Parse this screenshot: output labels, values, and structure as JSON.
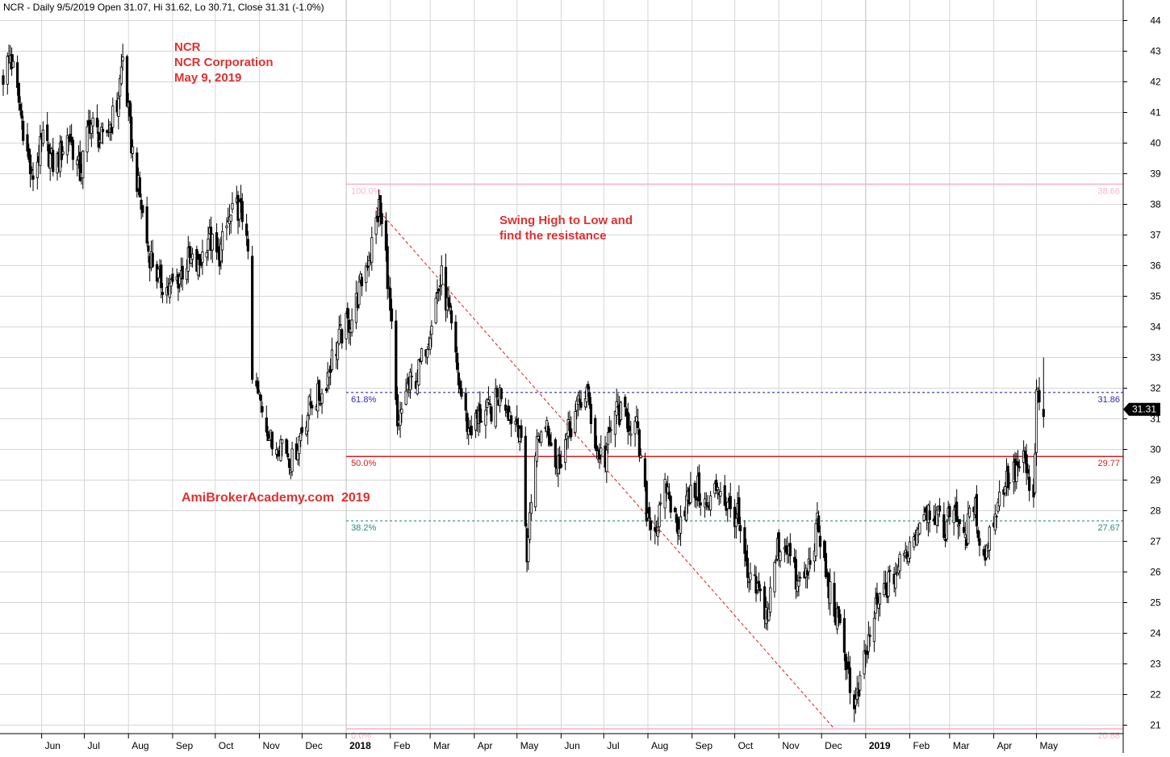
{
  "header": {
    "text": "NCR - Daily 9/5/2019 Open 31.07, Hi 31.62, Lo 30.71, Close 31.31 (-1.0%)"
  },
  "annotations": {
    "ticker": "NCR",
    "company": "NCR Corporation",
    "date": "May 9, 2019",
    "swing_line1": "Swing High to Low and",
    "swing_line2": "find the resistance",
    "watermark": "AmiBrokerAcademy.com  2019"
  },
  "colors": {
    "annotation_red": "#e03030",
    "candle": "#000000",
    "fib_100": "#f4b6c8",
    "fib_618": "#2a2ab0",
    "fib_50": "#d42020",
    "fib_382": "#2a8a7a",
    "fib_0": "#f4b6c8",
    "trend_line": "#d42020",
    "grid": "#d6d6d6",
    "price_tag_bg": "#000000"
  },
  "chart_data": {
    "type": "candlestick",
    "title": "NCR - Daily 9/5/2019 Open 31.07, Hi 31.62, Lo 30.71, Close 31.31 (-1.0%)",
    "ylim": [
      20.8,
      44.6
    ],
    "y_ticks": [
      21,
      22,
      23,
      24,
      25,
      26,
      27,
      28,
      29,
      30,
      31,
      32,
      33,
      34,
      35,
      36,
      37,
      38,
      39,
      40,
      41,
      42,
      43,
      44
    ],
    "x_start": "2017-05-05",
    "x_end": "2019-05-20",
    "x_ticks": [
      {
        "label": "Jun",
        "date": "2017-06-01",
        "bold": false
      },
      {
        "label": "Jul",
        "date": "2017-07-01",
        "bold": false
      },
      {
        "label": "Aug",
        "date": "2017-08-01",
        "bold": false
      },
      {
        "label": "Sep",
        "date": "2017-09-01",
        "bold": false
      },
      {
        "label": "Oct",
        "date": "2017-10-01",
        "bold": false
      },
      {
        "label": "Nov",
        "date": "2017-11-01",
        "bold": false
      },
      {
        "label": "Dec",
        "date": "2017-12-01",
        "bold": false
      },
      {
        "label": "2018",
        "date": "2018-01-01",
        "bold": true
      },
      {
        "label": "Feb",
        "date": "2018-02-01",
        "bold": false
      },
      {
        "label": "Mar",
        "date": "2018-03-01",
        "bold": false
      },
      {
        "label": "Apr",
        "date": "2018-04-01",
        "bold": false
      },
      {
        "label": "May",
        "date": "2018-05-01",
        "bold": false
      },
      {
        "label": "Jun",
        "date": "2018-06-01",
        "bold": false
      },
      {
        "label": "Jul",
        "date": "2018-07-01",
        "bold": false
      },
      {
        "label": "Aug",
        "date": "2018-08-01",
        "bold": false
      },
      {
        "label": "Sep",
        "date": "2018-09-01",
        "bold": false
      },
      {
        "label": "Oct",
        "date": "2018-10-01",
        "bold": false
      },
      {
        "label": "Nov",
        "date": "2018-11-01",
        "bold": false
      },
      {
        "label": "Dec",
        "date": "2018-12-01",
        "bold": false
      },
      {
        "label": "2019",
        "date": "2019-01-01",
        "bold": true
      },
      {
        "label": "Feb",
        "date": "2019-02-01",
        "bold": false
      },
      {
        "label": "Mar",
        "date": "2019-03-01",
        "bold": false
      },
      {
        "label": "Apr",
        "date": "2019-04-01",
        "bold": false
      },
      {
        "label": "May",
        "date": "2019-05-01",
        "bold": false
      }
    ],
    "close_path": [
      {
        "date": "2017-05-05",
        "close": 42.2
      },
      {
        "date": "2017-05-10",
        "close": 42.9
      },
      {
        "date": "2017-05-18",
        "close": 40.8
      },
      {
        "date": "2017-05-25",
        "close": 38.8
      },
      {
        "date": "2017-06-02",
        "close": 40.1
      },
      {
        "date": "2017-06-10",
        "close": 39.2
      },
      {
        "date": "2017-06-20",
        "close": 40.3
      },
      {
        "date": "2017-06-28",
        "close": 39.0
      },
      {
        "date": "2017-07-05",
        "close": 40.7
      },
      {
        "date": "2017-07-14",
        "close": 40.0
      },
      {
        "date": "2017-07-24",
        "close": 41.2
      },
      {
        "date": "2017-07-28",
        "close": 42.8
      },
      {
        "date": "2017-08-03",
        "close": 40.0
      },
      {
        "date": "2017-08-08",
        "close": 38.5
      },
      {
        "date": "2017-08-15",
        "close": 36.5
      },
      {
        "date": "2017-08-22",
        "close": 35.6
      },
      {
        "date": "2017-08-29",
        "close": 35.2
      },
      {
        "date": "2017-09-05",
        "close": 35.6
      },
      {
        "date": "2017-09-12",
        "close": 36.2
      },
      {
        "date": "2017-09-19",
        "close": 35.9
      },
      {
        "date": "2017-09-26",
        "close": 37.0
      },
      {
        "date": "2017-10-03",
        "close": 36.2
      },
      {
        "date": "2017-10-10",
        "close": 37.4
      },
      {
        "date": "2017-10-17",
        "close": 37.9
      },
      {
        "date": "2017-10-23",
        "close": 37.3
      },
      {
        "date": "2017-10-27",
        "close": 32.2
      },
      {
        "date": "2017-11-03",
        "close": 31.4
      },
      {
        "date": "2017-11-10",
        "close": 30.1
      },
      {
        "date": "2017-11-17",
        "close": 30.3
      },
      {
        "date": "2017-11-24",
        "close": 29.6
      },
      {
        "date": "2017-12-01",
        "close": 30.7
      },
      {
        "date": "2017-12-08",
        "close": 31.6
      },
      {
        "date": "2017-12-15",
        "close": 31.8
      },
      {
        "date": "2017-12-22",
        "close": 33.0
      },
      {
        "date": "2017-12-29",
        "close": 33.8
      },
      {
        "date": "2018-01-05",
        "close": 34.3
      },
      {
        "date": "2018-01-12",
        "close": 35.5
      },
      {
        "date": "2018-01-19",
        "close": 36.7
      },
      {
        "date": "2018-01-24",
        "close": 37.9
      },
      {
        "date": "2018-01-29",
        "close": 36.3
      },
      {
        "date": "2018-02-02",
        "close": 33.8
      },
      {
        "date": "2018-02-06",
        "close": 30.5
      },
      {
        "date": "2018-02-12",
        "close": 32.0
      },
      {
        "date": "2018-02-20",
        "close": 32.4
      },
      {
        "date": "2018-02-27",
        "close": 33.6
      },
      {
        "date": "2018-03-05",
        "close": 34.9
      },
      {
        "date": "2018-03-09",
        "close": 35.6
      },
      {
        "date": "2018-03-15",
        "close": 34.2
      },
      {
        "date": "2018-03-21",
        "close": 32.2
      },
      {
        "date": "2018-03-28",
        "close": 30.6
      },
      {
        "date": "2018-04-05",
        "close": 31.1
      },
      {
        "date": "2018-04-13",
        "close": 31.3
      },
      {
        "date": "2018-04-20",
        "close": 31.9
      },
      {
        "date": "2018-04-27",
        "close": 31.1
      },
      {
        "date": "2018-05-03",
        "close": 30.8
      },
      {
        "date": "2018-05-08",
        "close": 26.6
      },
      {
        "date": "2018-05-14",
        "close": 30.1
      },
      {
        "date": "2018-05-22",
        "close": 31.0
      },
      {
        "date": "2018-05-29",
        "close": 29.4
      },
      {
        "date": "2018-06-05",
        "close": 30.4
      },
      {
        "date": "2018-06-12",
        "close": 31.3
      },
      {
        "date": "2018-06-19",
        "close": 31.9
      },
      {
        "date": "2018-06-26",
        "close": 30.0
      },
      {
        "date": "2018-07-02",
        "close": 29.7
      },
      {
        "date": "2018-07-09",
        "close": 31.3
      },
      {
        "date": "2018-07-16",
        "close": 31.0
      },
      {
        "date": "2018-07-24",
        "close": 30.7
      },
      {
        "date": "2018-07-31",
        "close": 28.0
      },
      {
        "date": "2018-08-07",
        "close": 27.4
      },
      {
        "date": "2018-08-14",
        "close": 28.8
      },
      {
        "date": "2018-08-21",
        "close": 27.5
      },
      {
        "date": "2018-08-28",
        "close": 28.3
      },
      {
        "date": "2018-09-05",
        "close": 28.7
      },
      {
        "date": "2018-09-12",
        "close": 28.0
      },
      {
        "date": "2018-09-19",
        "close": 28.9
      },
      {
        "date": "2018-09-26",
        "close": 28.1
      },
      {
        "date": "2018-10-03",
        "close": 27.8
      },
      {
        "date": "2018-10-10",
        "close": 25.7
      },
      {
        "date": "2018-10-17",
        "close": 25.4
      },
      {
        "date": "2018-10-24",
        "close": 24.6
      },
      {
        "date": "2018-10-31",
        "close": 26.8
      },
      {
        "date": "2018-11-07",
        "close": 26.9
      },
      {
        "date": "2018-11-14",
        "close": 25.5
      },
      {
        "date": "2018-11-21",
        "close": 26.0
      },
      {
        "date": "2018-11-28",
        "close": 27.5
      },
      {
        "date": "2018-12-05",
        "close": 25.7
      },
      {
        "date": "2018-12-12",
        "close": 24.4
      },
      {
        "date": "2018-12-19",
        "close": 23.0
      },
      {
        "date": "2018-12-24",
        "close": 21.4
      },
      {
        "date": "2018-12-31",
        "close": 23.0
      },
      {
        "date": "2019-01-07",
        "close": 24.6
      },
      {
        "date": "2019-01-14",
        "close": 25.4
      },
      {
        "date": "2019-01-21",
        "close": 25.9
      },
      {
        "date": "2019-01-28",
        "close": 26.5
      },
      {
        "date": "2019-02-04",
        "close": 27.2
      },
      {
        "date": "2019-02-11",
        "close": 28.1
      },
      {
        "date": "2019-02-18",
        "close": 28.0
      },
      {
        "date": "2019-02-25",
        "close": 27.3
      },
      {
        "date": "2019-03-04",
        "close": 28.3
      },
      {
        "date": "2019-03-11",
        "close": 26.9
      },
      {
        "date": "2019-03-18",
        "close": 28.3
      },
      {
        "date": "2019-03-25",
        "close": 26.4
      },
      {
        "date": "2019-04-01",
        "close": 27.8
      },
      {
        "date": "2019-04-08",
        "close": 28.9
      },
      {
        "date": "2019-04-15",
        "close": 29.2
      },
      {
        "date": "2019-04-22",
        "close": 29.6
      },
      {
        "date": "2019-04-29",
        "close": 28.2
      },
      {
        "date": "2019-05-01",
        "close": 31.6
      },
      {
        "date": "2019-05-02",
        "close": 32.0
      },
      {
        "date": "2019-05-03",
        "close": 31.3
      }
    ],
    "fib_levels": [
      {
        "pct_label": "100.0%",
        "value_label": "38.66",
        "value": 38.66,
        "style": "solid",
        "color_key": "fib_100"
      },
      {
        "pct_label": "61.8%",
        "value_label": "31.86",
        "value": 31.86,
        "style": "dotted",
        "color_key": "fib_618"
      },
      {
        "pct_label": "50.0%",
        "value_label": "29.77",
        "value": 29.77,
        "style": "solid",
        "color_key": "fib_50"
      },
      {
        "pct_label": "38.2%",
        "value_label": "27.67",
        "value": 27.67,
        "style": "dotted",
        "color_key": "fib_382"
      },
      {
        "pct_label": "0.0%",
        "value_label": "20.88",
        "value": 20.88,
        "style": "solid",
        "color_key": "fib_0"
      }
    ],
    "fib_start_date": "2018-01-01",
    "swing_line": {
      "from_date": "2018-01-22",
      "from_value": 37.9,
      "to_date": "2018-12-10",
      "to_value": 20.88
    },
    "last_price": {
      "label": "31.31",
      "value": 31.31
    }
  }
}
